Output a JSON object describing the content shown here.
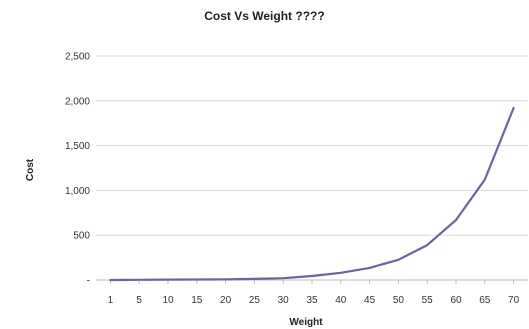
{
  "chart_data": {
    "type": "line",
    "title": "Cost Vs Weight ????",
    "xlabel": "Weight",
    "ylabel": "Cost",
    "x": [
      1,
      5,
      10,
      15,
      20,
      25,
      30,
      35,
      40,
      45,
      50,
      55,
      60,
      65,
      70
    ],
    "series": [
      {
        "values": [
          0,
          2,
          5,
          6,
          7,
          12,
          20,
          45,
          80,
          135,
          225,
          390,
          670,
          1120,
          1920
        ]
      }
    ],
    "ylim": [
      0,
      2500
    ],
    "yticks": [
      "-",
      "500",
      "1,000",
      "1,500",
      "2,000",
      "2,500"
    ],
    "grid": "horizontal",
    "legend": "none",
    "line_color": "#6a63a8"
  }
}
